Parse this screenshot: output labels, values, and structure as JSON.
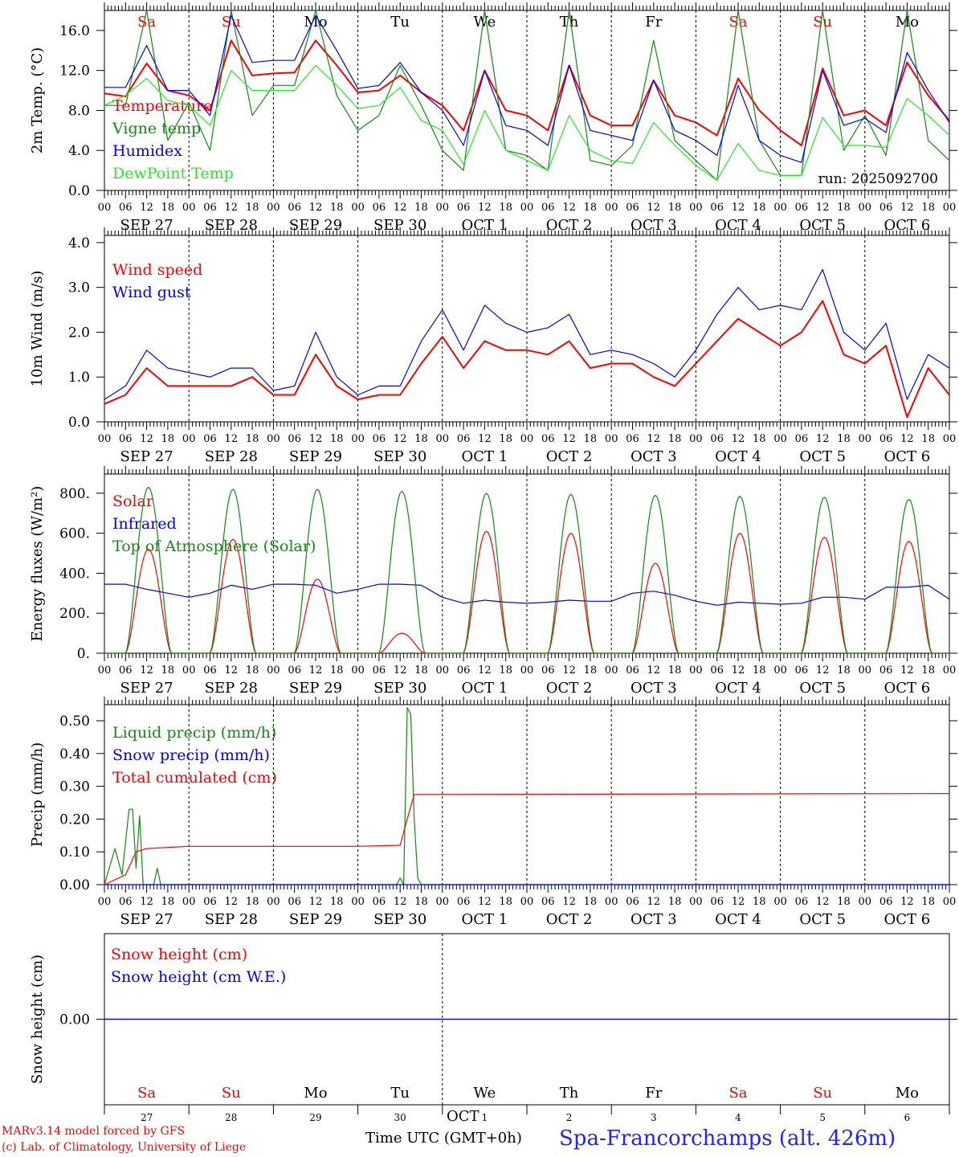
{
  "footer": {
    "model": "MARv3.14 model forced by GFS",
    "credit": "(c) Lab. of Climatology, University of Liege",
    "time_label": "Time UTC (GMT+0h)",
    "station": "Spa-Francorchamps (alt. 426m)",
    "month": "OCT"
  },
  "hour_ticks": [
    "00",
    "06",
    "12",
    "18"
  ],
  "dates": [
    "SEP  27",
    "SEP  28",
    "SEP  29",
    "SEP  30",
    "OCT   1",
    "OCT   2",
    "OCT   3",
    "OCT   4",
    "OCT   5",
    "OCT   6"
  ],
  "day_names": [
    "Sa",
    "Su",
    "Mo",
    "Tu",
    "We",
    "Th",
    "Fr",
    "Sa",
    "Su",
    "Mo"
  ],
  "day_numbers": [
    "27",
    "28",
    "29",
    "30",
    "1",
    "2",
    "3",
    "4",
    "5",
    "6"
  ],
  "colors": {
    "red": "#ff0000",
    "green": "#138a13",
    "blue": "#0000ff",
    "lightgreen": "#22ee22",
    "weekend": "#ff0000",
    "weekday": "#000000"
  },
  "chart_data": [
    {
      "type": "line",
      "ylabel": "2m Temp. (°C)",
      "ylim": [
        0,
        18
      ],
      "yticks": [
        "0.0",
        "4.0",
        "8.0",
        "12.0",
        "16.0"
      ],
      "ytick_values": [
        0,
        4,
        8,
        12,
        16
      ],
      "annotation": "run: 2025092700",
      "x_hours_step": 6,
      "series": [
        {
          "name": "Temperature",
          "color": "#ff0000",
          "values": [
            9.7,
            9.4,
            12.7,
            10.0,
            9.5,
            8.0,
            15.0,
            11.5,
            11.7,
            11.8,
            15.0,
            12.5,
            9.8,
            10.0,
            11.5,
            9.8,
            8.5,
            6.0,
            12.0,
            8.0,
            7.5,
            6.0,
            12.5,
            7.5,
            6.5,
            6.5,
            11.0,
            7.5,
            6.8,
            5.5,
            11.2,
            8.0,
            6.0,
            4.5,
            12.2,
            7.5,
            8.0,
            6.5,
            12.8,
            9.5,
            7.0
          ]
        },
        {
          "name": "Vigne temp",
          "color": "#138a13",
          "values": [
            8.5,
            8.5,
            18.0,
            5.0,
            8.8,
            4.0,
            20.0,
            7.5,
            10.5,
            10.5,
            19.0,
            9.5,
            6.0,
            7.5,
            12.5,
            8.5,
            4.0,
            2.0,
            18.5,
            4.0,
            3.5,
            2.0,
            19.0,
            3.0,
            2.5,
            4.5,
            15.0,
            5.0,
            3.0,
            1.0,
            18.5,
            5.0,
            1.5,
            1.5,
            18.5,
            4.0,
            7.5,
            3.5,
            19.0,
            5.0,
            3.0
          ]
        },
        {
          "name": "Humidex",
          "color": "#0000ff",
          "values": [
            10.3,
            10.3,
            14.5,
            10.0,
            10.0,
            7.5,
            17.5,
            12.8,
            13.0,
            13.0,
            17.5,
            14.0,
            10.2,
            10.5,
            12.8,
            9.8,
            8.0,
            4.5,
            12.0,
            6.5,
            6.0,
            4.5,
            12.5,
            6.0,
            5.5,
            5.0,
            11.0,
            6.0,
            5.0,
            3.5,
            10.5,
            5.0,
            3.5,
            2.8,
            12.0,
            6.5,
            7.2,
            5.8,
            13.8,
            10.0,
            6.8
          ]
        },
        {
          "name": "DewPoint Temp",
          "color": "#22ee22",
          "values": [
            8.5,
            9.5,
            11.2,
            9.0,
            8.5,
            6.5,
            12.0,
            10.0,
            10.0,
            10.0,
            12.5,
            10.5,
            8.2,
            8.5,
            10.3,
            7.0,
            6.0,
            2.6,
            8.0,
            4.0,
            3.0,
            2.0,
            7.5,
            4.0,
            3.0,
            2.7,
            6.8,
            4.5,
            2.5,
            1.0,
            4.7,
            2.0,
            1.5,
            1.5,
            7.3,
            4.5,
            4.5,
            4.3,
            9.2,
            7.5,
            5.5
          ]
        }
      ]
    },
    {
      "type": "line",
      "ylabel": "10m Wind (m/s)",
      "ylim": [
        0,
        4.16
      ],
      "yticks": [
        "0.0",
        "1.0",
        "2.0",
        "3.0",
        "4.0"
      ],
      "ytick_values": [
        0,
        1,
        2,
        3,
        4
      ],
      "x_hours_step": 6,
      "series": [
        {
          "name": "Wind speed",
          "color": "#ff0000",
          "values": [
            0.4,
            0.6,
            1.2,
            0.8,
            0.8,
            0.8,
            0.8,
            1.0,
            0.6,
            0.6,
            1.5,
            0.8,
            0.5,
            0.6,
            0.6,
            1.3,
            1.9,
            1.2,
            1.8,
            1.6,
            1.6,
            1.5,
            1.8,
            1.2,
            1.3,
            1.3,
            1.0,
            0.8,
            1.3,
            1.8,
            2.3,
            2.0,
            1.7,
            2.0,
            2.7,
            1.5,
            1.3,
            1.7,
            0.1,
            1.2,
            0.6
          ]
        },
        {
          "name": "Wind gust",
          "color": "#0000ff",
          "values": [
            0.5,
            0.8,
            1.6,
            1.2,
            1.1,
            1.0,
            1.2,
            1.2,
            0.7,
            0.8,
            2.0,
            1.0,
            0.6,
            0.8,
            0.8,
            1.8,
            2.5,
            1.6,
            2.6,
            2.2,
            2.0,
            2.1,
            2.4,
            1.5,
            1.6,
            1.5,
            1.3,
            1.0,
            1.6,
            2.4,
            3.0,
            2.5,
            2.6,
            2.5,
            3.4,
            2.0,
            1.6,
            2.2,
            0.5,
            1.5,
            1.2
          ]
        }
      ]
    },
    {
      "type": "line",
      "ylabel": "Energy fluxes (W/m²)",
      "ylim": [
        0,
        896
      ],
      "yticks": [
        "0.",
        "200.",
        "400.",
        "600.",
        "800."
      ],
      "ytick_values": [
        0,
        200,
        400,
        600,
        800
      ],
      "series": [
        {
          "name": "Solar",
          "color": "#ff0000",
          "daily_peaks": [
            520,
            570,
            370,
            100,
            610,
            600,
            450,
            600,
            580,
            560
          ]
        },
        {
          "name": "Infrared",
          "color": "#0000ff",
          "x_hours_step": 6,
          "values": [
            345,
            345,
            320,
            300,
            280,
            300,
            340,
            320,
            345,
            345,
            340,
            300,
            320,
            345,
            345,
            340,
            280,
            250,
            265,
            255,
            250,
            255,
            265,
            260,
            260,
            300,
            310,
            290,
            260,
            240,
            255,
            250,
            245,
            250,
            280,
            280,
            270,
            330,
            330,
            340,
            270
          ]
        },
        {
          "name": "Top of Atmosphere (Solar)",
          "color": "#138a13",
          "daily_peaks": [
            830,
            820,
            820,
            810,
            800,
            795,
            790,
            785,
            780,
            770
          ]
        }
      ]
    },
    {
      "type": "line",
      "ylabel": "Precip (mm/h)",
      "ylim": [
        0,
        0.549
      ],
      "yticks": [
        "0.00",
        "0.10",
        "0.20",
        "0.30",
        "0.40",
        "0.50"
      ],
      "ytick_values": [
        0,
        0.1,
        0.2,
        0.3,
        0.4,
        0.5
      ],
      "series": [
        {
          "name": "Liquid precip (mm/h)",
          "color": "#138a13",
          "points": [
            [
              0,
              0
            ],
            [
              3,
              0.11
            ],
            [
              5,
              0.03
            ],
            [
              7,
              0.23
            ],
            [
              8,
              0.23
            ],
            [
              9,
              0.05
            ],
            [
              10,
              0.21
            ],
            [
              11,
              0
            ],
            [
              14,
              0
            ],
            [
              15,
              0.05
            ],
            [
              16,
              0
            ],
            [
              83,
              0
            ],
            [
              84,
              0.02
            ],
            [
              85,
              0
            ],
            [
              86,
              0.54
            ],
            [
              87,
              0.52
            ],
            [
              88,
              0.2
            ],
            [
              89,
              0.02
            ],
            [
              90,
              0
            ],
            [
              240,
              0
            ]
          ]
        },
        {
          "name": "Snow precip (mm/h)",
          "color": "#0000ff",
          "points": [
            [
              0,
              0
            ],
            [
              240,
              0
            ]
          ]
        },
        {
          "name": "Total cumulated (cm)",
          "color": "#ff0000",
          "points": [
            [
              0,
              0
            ],
            [
              6,
              0.03
            ],
            [
              9,
              0.1
            ],
            [
              12,
              0.11
            ],
            [
              24,
              0.117
            ],
            [
              72,
              0.117
            ],
            [
              84,
              0.12
            ],
            [
              86,
              0.2
            ],
            [
              88,
              0.275
            ],
            [
              240,
              0.278
            ]
          ]
        }
      ]
    },
    {
      "type": "line",
      "ylabel": "Snow height (cm)",
      "ylim": [
        -1,
        1
      ],
      "yticks": [
        "0.00"
      ],
      "ytick_values": [
        0
      ],
      "series": [
        {
          "name": "Snow height (cm)",
          "color": "#ff0000",
          "points": [
            [
              0,
              0
            ],
            [
              240,
              0
            ]
          ]
        },
        {
          "name": "Snow height (cm W.E.)",
          "color": "#0000ff",
          "points": [
            [
              0,
              0
            ],
            [
              240,
              0
            ]
          ]
        }
      ]
    }
  ]
}
